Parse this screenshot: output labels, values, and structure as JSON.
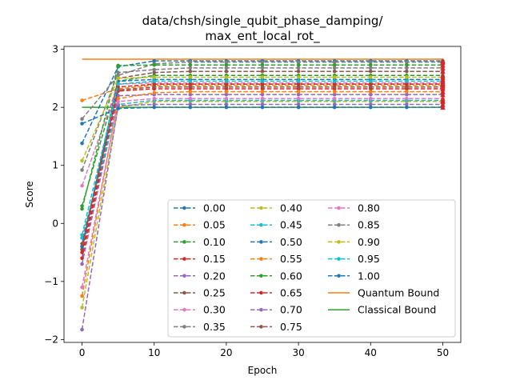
{
  "chart_data": {
    "type": "line",
    "title_lines": [
      "data/chsh/single_qubit_phase_damping/",
      "max_ent_local_rot_"
    ],
    "xlabel": "Epoch",
    "ylabel": "Score",
    "xlim": [
      -2.5,
      52.5
    ],
    "ylim": [
      -2.05,
      3.05
    ],
    "x_ticks": [
      0,
      10,
      20,
      30,
      40,
      50
    ],
    "y_ticks": [
      -2,
      -1,
      0,
      1,
      2,
      3
    ],
    "x": [
      0,
      5,
      10,
      15,
      20,
      25,
      30,
      35,
      40,
      45,
      50
    ],
    "grid": false,
    "legend_position": "lower right",
    "series": [
      {
        "name": "0.00",
        "color": "#1f77b4",
        "values": [
          1.38,
          2.7,
          2.8,
          2.8,
          2.8,
          2.8,
          2.8,
          2.8,
          2.8,
          2.8,
          2.8
        ]
      },
      {
        "name": "0.05",
        "color": "#ff7f0e",
        "values": [
          2.12,
          2.32,
          2.38,
          2.38,
          2.38,
          2.38,
          2.38,
          2.38,
          2.38,
          2.38,
          2.38
        ]
      },
      {
        "name": "0.10",
        "color": "#2ca02c",
        "values": [
          0.3,
          2.45,
          2.55,
          2.55,
          2.55,
          2.55,
          2.55,
          2.55,
          2.55,
          2.55,
          2.55
        ]
      },
      {
        "name": "0.15",
        "color": "#d62728",
        "values": [
          -0.6,
          2.28,
          2.32,
          2.32,
          2.32,
          2.32,
          2.32,
          2.32,
          2.32,
          2.32,
          2.32
        ]
      },
      {
        "name": "0.20",
        "color": "#9467bd",
        "values": [
          -0.7,
          2.2,
          2.22,
          2.22,
          2.22,
          2.22,
          2.22,
          2.22,
          2.22,
          2.22,
          2.22
        ]
      },
      {
        "name": "0.25",
        "color": "#8c564b",
        "values": [
          -0.45,
          2.5,
          2.6,
          2.62,
          2.62,
          2.62,
          2.62,
          2.62,
          2.62,
          2.62,
          2.62
        ]
      },
      {
        "name": "0.30",
        "color": "#e377c2",
        "values": [
          0.65,
          2.4,
          2.42,
          2.42,
          2.42,
          2.42,
          2.42,
          2.42,
          2.42,
          2.42,
          2.42
        ]
      },
      {
        "name": "0.35",
        "color": "#7f7f7f",
        "values": [
          1.8,
          2.55,
          2.75,
          2.78,
          2.78,
          2.78,
          2.78,
          2.78,
          2.78,
          2.78,
          2.78
        ]
      },
      {
        "name": "0.40",
        "color": "#bcbd22",
        "values": [
          -1.45,
          2.0,
          2.1,
          2.1,
          2.1,
          2.1,
          2.1,
          2.1,
          2.1,
          2.1,
          2.1
        ]
      },
      {
        "name": "0.45",
        "color": "#17becf",
        "values": [
          -0.25,
          2.05,
          2.12,
          2.12,
          2.12,
          2.12,
          2.12,
          2.12,
          2.12,
          2.12,
          2.12
        ]
      },
      {
        "name": "0.50",
        "color": "#1f77b4",
        "values": [
          -0.4,
          2.45,
          2.48,
          2.48,
          2.48,
          2.48,
          2.48,
          2.48,
          2.48,
          2.48,
          2.48
        ]
      },
      {
        "name": "0.55",
        "color": "#ff7f0e",
        "values": [
          -1.25,
          2.15,
          2.25,
          2.27,
          2.27,
          2.27,
          2.27,
          2.27,
          2.27,
          2.27,
          2.27
        ]
      },
      {
        "name": "0.60",
        "color": "#2ca02c",
        "values": [
          0.25,
          2.72,
          2.73,
          2.73,
          2.73,
          2.73,
          2.73,
          2.73,
          2.73,
          2.73,
          2.73
        ]
      },
      {
        "name": "0.65",
        "color": "#d62728",
        "values": [
          -0.5,
          2.35,
          2.4,
          2.4,
          2.4,
          2.4,
          2.4,
          2.4,
          2.4,
          2.4,
          2.4
        ]
      },
      {
        "name": "0.70",
        "color": "#9467bd",
        "values": [
          -1.83,
          2.03,
          2.05,
          2.05,
          2.05,
          2.05,
          2.05,
          2.05,
          2.05,
          2.05,
          2.05
        ]
      },
      {
        "name": "0.75",
        "color": "#8c564b",
        "values": [
          -0.35,
          2.3,
          2.35,
          2.35,
          2.35,
          2.35,
          2.35,
          2.35,
          2.35,
          2.35,
          2.35
        ]
      },
      {
        "name": "0.80",
        "color": "#e377c2",
        "values": [
          -1.1,
          2.1,
          2.15,
          2.15,
          2.15,
          2.15,
          2.15,
          2.15,
          2.15,
          2.15,
          2.15
        ]
      },
      {
        "name": "0.85",
        "color": "#7f7f7f",
        "values": [
          0.92,
          2.6,
          2.65,
          2.68,
          2.68,
          2.68,
          2.68,
          2.68,
          2.68,
          2.68,
          2.68
        ]
      },
      {
        "name": "0.90",
        "color": "#bcbd22",
        "values": [
          1.08,
          2.5,
          2.52,
          2.52,
          2.52,
          2.52,
          2.52,
          2.52,
          2.52,
          2.52,
          2.52
        ]
      },
      {
        "name": "0.95",
        "color": "#17becf",
        "values": [
          -0.2,
          2.4,
          2.45,
          2.45,
          2.45,
          2.45,
          2.45,
          2.45,
          2.45,
          2.45,
          2.45
        ]
      },
      {
        "name": "1.00",
        "color": "#1f77b4",
        "values": [
          1.72,
          1.98,
          2.0,
          2.0,
          2.0,
          2.0,
          2.0,
          2.0,
          2.0,
          2.0,
          2.0
        ]
      }
    ],
    "bounds": [
      {
        "name": "Quantum Bound",
        "color": "#ff7f0e",
        "value": 2.83
      },
      {
        "name": "Classical Bound",
        "color": "#2ca02c",
        "value": 2.0
      }
    ]
  }
}
